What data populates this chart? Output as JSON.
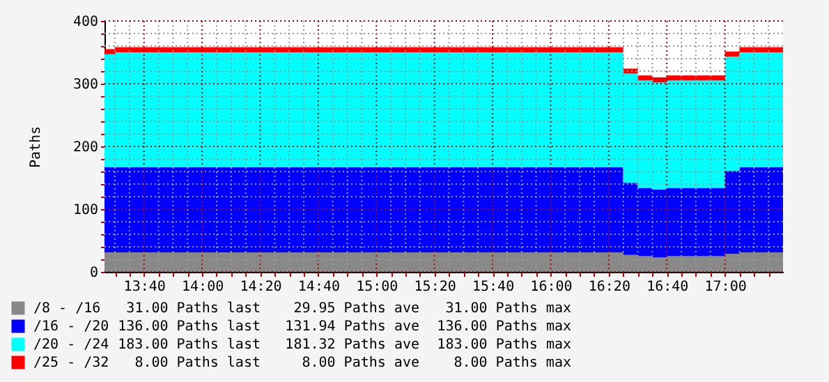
{
  "chart_data": {
    "type": "area",
    "stacked": true,
    "ylabel": "Paths",
    "grid": true,
    "legend": "bottom",
    "x": [
      13.44,
      13.5,
      16.4167,
      16.5,
      16.5833,
      16.6667,
      17.0,
      17.0833,
      17.3333
    ],
    "series": [
      {
        "name": "/8 - /16",
        "color": "#888888",
        "values": [
          31,
          31,
          27,
          25,
          23,
          25,
          29,
          31,
          31
        ]
      },
      {
        "name": "/16 - /20",
        "color": "#0000ff",
        "values": [
          136,
          136,
          115,
          109,
          108,
          109,
          132,
          136,
          136
        ]
      },
      {
        "name": "/20 - /24",
        "color": "#00ffff",
        "values": [
          180,
          183,
          174,
          171,
          171,
          171,
          182,
          183,
          183
        ]
      },
      {
        "name": "/25 - /32",
        "color": "#ff0000",
        "values": [
          8,
          8,
          8,
          8,
          8,
          8,
          8,
          8,
          8
        ]
      }
    ],
    "xlim": [
      13.44,
      17.3333
    ],
    "ylim": [
      0,
      400
    ],
    "xticks": [
      {
        "value": 13.5,
        "label": null
      },
      {
        "value": 13.5833,
        "label": null
      },
      {
        "value": 13.6667,
        "label": "13:40"
      },
      {
        "value": 13.75,
        "label": null
      },
      {
        "value": 13.8333,
        "label": null
      },
      {
        "value": 13.9167,
        "label": null
      },
      {
        "value": 14.0,
        "label": "14:00"
      },
      {
        "value": 14.0833,
        "label": null
      },
      {
        "value": 14.1667,
        "label": null
      },
      {
        "value": 14.25,
        "label": null
      },
      {
        "value": 14.3333,
        "label": "14:20"
      },
      {
        "value": 14.4167,
        "label": null
      },
      {
        "value": 14.5,
        "label": null
      },
      {
        "value": 14.5833,
        "label": null
      },
      {
        "value": 14.6667,
        "label": "14:40"
      },
      {
        "value": 14.75,
        "label": null
      },
      {
        "value": 14.8333,
        "label": null
      },
      {
        "value": 14.9167,
        "label": null
      },
      {
        "value": 15.0,
        "label": "15:00"
      },
      {
        "value": 15.0833,
        "label": null
      },
      {
        "value": 15.1667,
        "label": null
      },
      {
        "value": 15.25,
        "label": null
      },
      {
        "value": 15.3333,
        "label": "15:20"
      },
      {
        "value": 15.4167,
        "label": null
      },
      {
        "value": 15.5,
        "label": null
      },
      {
        "value": 15.5833,
        "label": null
      },
      {
        "value": 15.6667,
        "label": "15:40"
      },
      {
        "value": 15.75,
        "label": null
      },
      {
        "value": 15.8333,
        "label": null
      },
      {
        "value": 15.9167,
        "label": null
      },
      {
        "value": 16.0,
        "label": "16:00"
      },
      {
        "value": 16.0833,
        "label": null
      },
      {
        "value": 16.1667,
        "label": null
      },
      {
        "value": 16.25,
        "label": null
      },
      {
        "value": 16.3333,
        "label": "16:20"
      },
      {
        "value": 16.4167,
        "label": null
      },
      {
        "value": 16.5,
        "label": null
      },
      {
        "value": 16.5833,
        "label": null
      },
      {
        "value": 16.6667,
        "label": "16:40"
      },
      {
        "value": 16.75,
        "label": null
      },
      {
        "value": 16.8333,
        "label": null
      },
      {
        "value": 16.9167,
        "label": null
      },
      {
        "value": 17.0,
        "label": "17:00"
      },
      {
        "value": 17.0833,
        "label": null
      },
      {
        "value": 17.1667,
        "label": null
      },
      {
        "value": 17.25,
        "label": null
      }
    ],
    "yticks": [
      0,
      {
        "value": 20,
        "label": null
      },
      {
        "value": 40,
        "label": null
      },
      {
        "value": 60,
        "label": null
      },
      {
        "value": 80,
        "label": null
      },
      100,
      {
        "value": 120,
        "label": null
      },
      {
        "value": 140,
        "label": null
      },
      {
        "value": 160,
        "label": null
      },
      {
        "value": 180,
        "label": null
      },
      200,
      {
        "value": 220,
        "label": null
      },
      {
        "value": 240,
        "label": null
      },
      {
        "value": 260,
        "label": null
      },
      {
        "value": 280,
        "label": null
      },
      300,
      {
        "value": 320,
        "label": null
      },
      {
        "value": 340,
        "label": null
      },
      {
        "value": 360,
        "label": null
      },
      {
        "value": 380,
        "label": null
      },
      400
    ],
    "annotations": [
      "31.00 Paths last",
      "29.95 Paths ave",
      "31.00 Paths max",
      "136.00 Paths last",
      "131.94 Paths ave",
      "136.00 Paths max",
      "183.00 Paths last",
      "181.32 Paths ave",
      "183.00 Paths max",
      "8.00 Paths last",
      "8.00 Paths ave",
      "8.00 Paths max"
    ]
  }
}
